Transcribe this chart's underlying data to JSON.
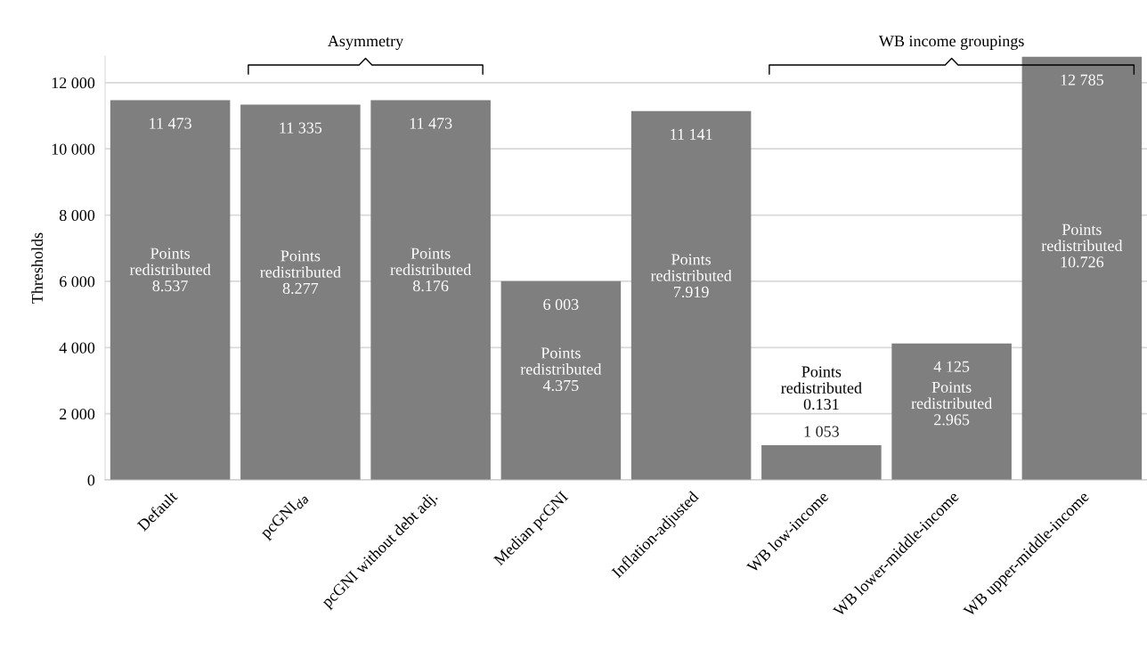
{
  "chart_data": {
    "type": "bar",
    "ylabel": "Thresholds",
    "categories": [
      "Default",
      "pcGNI$_{da}$",
      "pcGNI without debt adj.",
      "Median pcGNI",
      "Inflation-adjusted",
      "WB low-income",
      "WB lower-middle-income",
      "WB upper-middle-income"
    ],
    "values": [
      11473,
      11335,
      11473,
      6003,
      11141,
      1053,
      4125,
      12785
    ],
    "value_labels": [
      "11 473",
      "11 335",
      "11 473",
      "6 003",
      "11 141",
      "1 053",
      "4 125",
      "12 785"
    ],
    "color": "#7f7f7f",
    "ylim": [
      0,
      12800
    ],
    "yticks": [
      0,
      {
        "value": 2000,
        "label": "2 000"
      },
      {
        "value": 4000,
        "label": "4 000"
      },
      {
        "value": 6000,
        "label": "6 000"
      },
      {
        "value": 8000,
        "label": "8 000"
      },
      {
        "value": 10000,
        "label": "10 000"
      },
      {
        "value": 12000,
        "label": "12 000"
      }
    ],
    "grid": "y",
    "annotations": [
      "Points\nredistributed\n8.537",
      "Points\nredistributed\n8.277",
      "Points\nredistributed\n8.176",
      "Points\nredistributed\n4.375",
      "Points\nredistributed\n7.919",
      "Points\nredistributed\n0.131",
      "Points\nredistributed\n2.965",
      "Points\nredistributed\n10.726",
      "Asymmetry",
      "WB income groupings"
    ]
  }
}
